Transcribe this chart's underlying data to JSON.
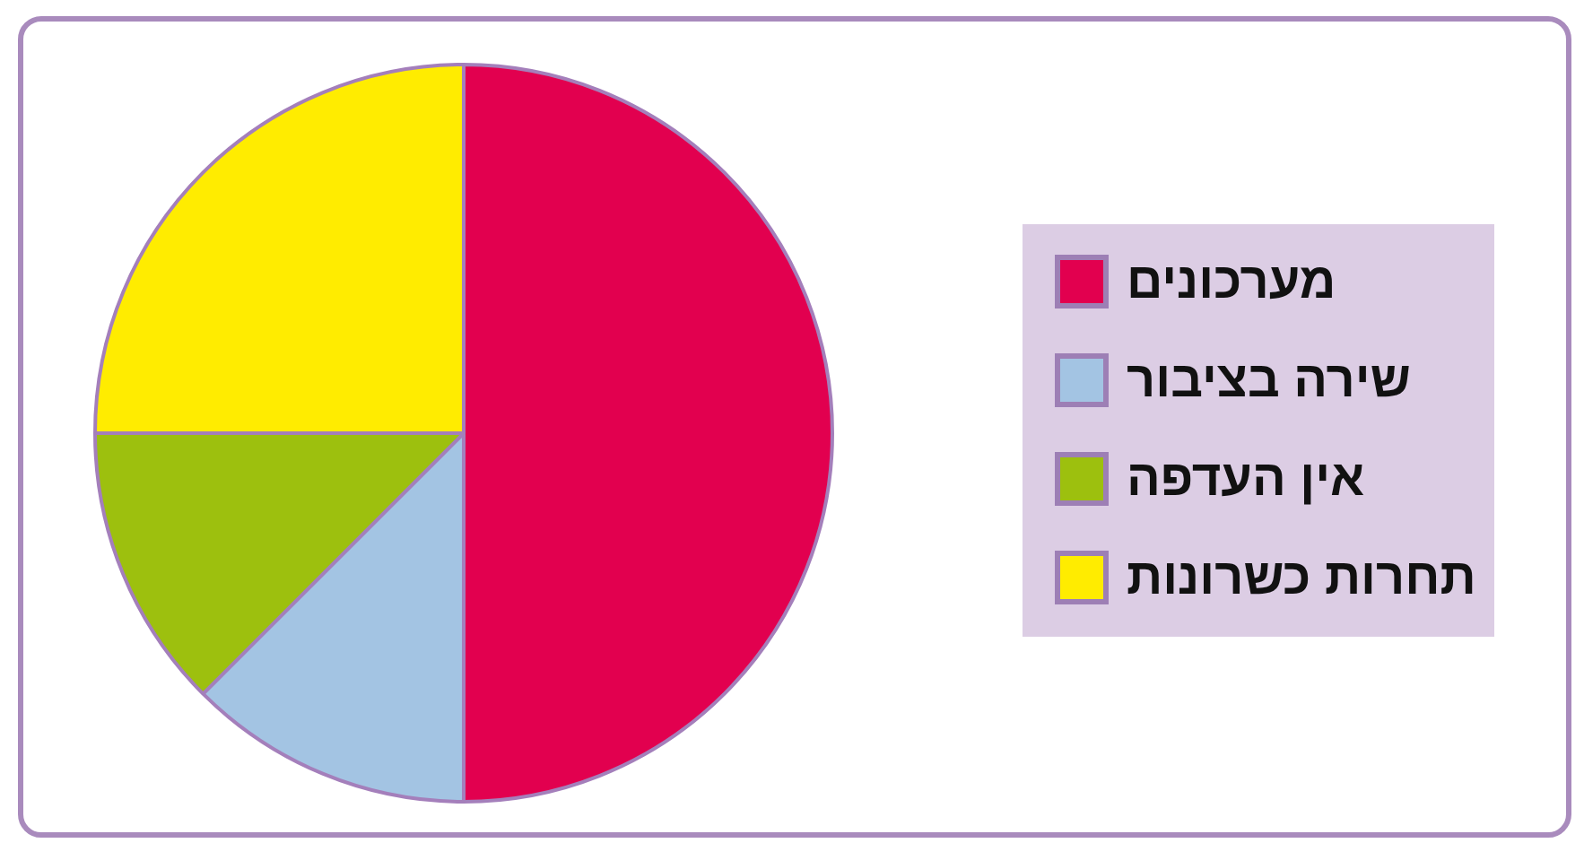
{
  "chart_data": {
    "type": "pie",
    "categories": [
      "מערכונים",
      "שירה בציבור",
      "אין העדפה",
      "תחרות כשרונות"
    ],
    "values": [
      50,
      12.5,
      12.5,
      25
    ],
    "colors": [
      "#e2004f",
      "#a3c4e3",
      "#9dc00e",
      "#ffec00"
    ],
    "legend": "right"
  }
}
